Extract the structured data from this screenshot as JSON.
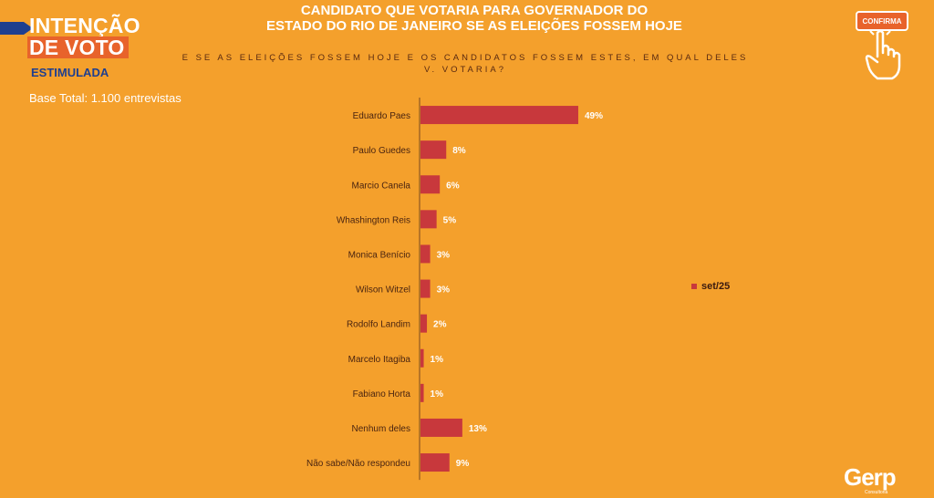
{
  "badge": {
    "line1": "INTENÇÃO",
    "line2": "DE VOTO",
    "subtitle": "ESTIMULADA"
  },
  "base_total": "Base Total: 1.100 entrevistas",
  "title": {
    "line1": "CANDIDATO QUE VOTARIA PARA GOVERNADOR DO",
    "line2": "ESTADO DO RIO DE JANEIRO SE AS ELEIÇÕES FOSSEM HOJE"
  },
  "question": "E SE AS ELEIÇÕES FOSSEM HOJE E OS CANDIDATOS FOSSEM ESTES, EM QUAL DELES V. VOTARIA?",
  "confirma_button": "CONFIRMA",
  "logo": {
    "name": "Gerp",
    "tagline": "Consultoria"
  },
  "colors": {
    "background": "#F4A02C",
    "bar": "#C8383C",
    "badge_accent": "#E8632B",
    "navy": "#1F3F8F"
  },
  "chart_data": {
    "type": "bar",
    "orientation": "horizontal",
    "categories": [
      "Eduardo Paes",
      "Paulo Guedes",
      "Marcio Canela",
      "Whashington Reis",
      "Monica Benício",
      "Wilson Witzel",
      "Rodolfo Landim",
      "Marcelo Itagiba",
      "Fabiano Horta",
      "Nenhum deles",
      "Não sabe/Não respondeu"
    ],
    "series": [
      {
        "name": "set/25",
        "values": [
          49,
          8,
          6,
          5,
          3,
          3,
          2,
          1,
          1,
          13,
          9
        ],
        "labels": [
          "49%",
          "8%",
          "6%",
          "5%",
          "3%",
          "3%",
          "2%",
          "1%",
          "1%",
          "13%",
          "9%"
        ]
      }
    ],
    "xlim": [
      0,
      100
    ],
    "grid": false,
    "legend": "right"
  }
}
